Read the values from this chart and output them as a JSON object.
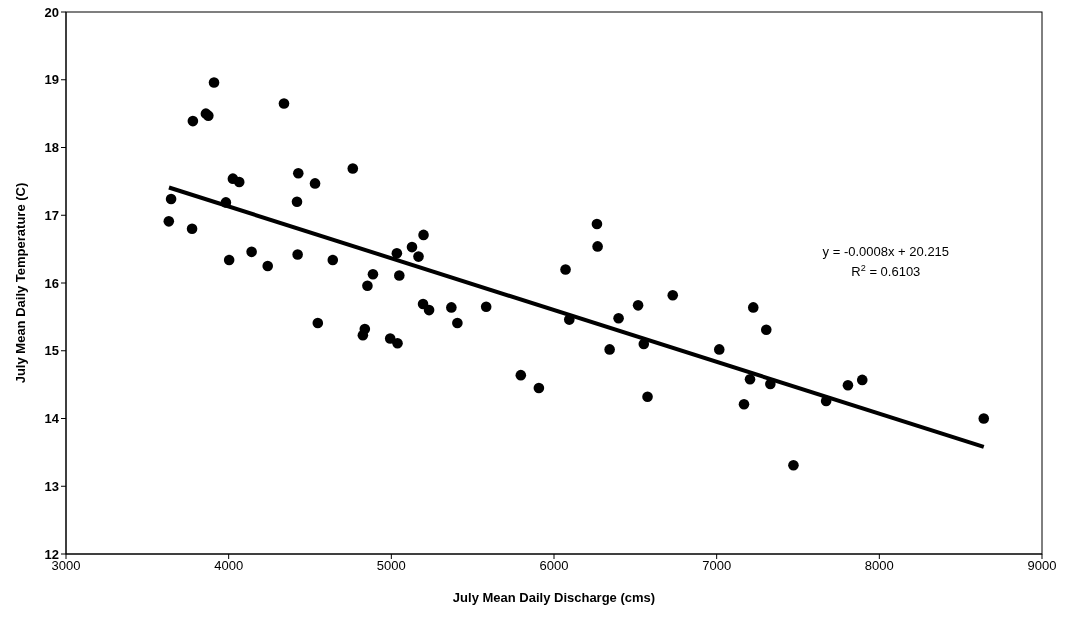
{
  "chart_data": {
    "type": "scatter",
    "xlabel": "July Mean Daily Discharge (cms)",
    "ylabel": "July Mean Daily Temperature (C)",
    "xlim": [
      3000,
      9000
    ],
    "xticks": [
      3000,
      4000,
      5000,
      6000,
      7000,
      8000,
      9000
    ],
    "ylim": [
      12,
      20
    ],
    "yticks": [
      12,
      13,
      14,
      15,
      16,
      17,
      18,
      19,
      20
    ],
    "grid": false,
    "legend": false,
    "annotations": [
      "y = -0.0008x + 20.215",
      "R$^{2}$ = 0.6103"
    ],
    "series": [
      {
        "marker": "circle",
        "color": "#000000",
        "x": [
          3646,
          3632,
          3775,
          4026,
          4065,
          3983,
          4003,
          4141,
          4240,
          4428,
          4531,
          4420,
          4424,
          4763,
          4640,
          4887,
          4853,
          5049,
          5034,
          5127,
          5167,
          5198,
          4548,
          4837,
          4825,
          4993,
          5038,
          5195,
          5232,
          5369,
          5406,
          3780,
          3860,
          3875,
          3910,
          4340,
          5583,
          5796,
          5907,
          6071,
          6094,
          6264,
          6268,
          6342,
          6397,
          6517,
          6552,
          6575,
          6730,
          7016,
          7225,
          7305,
          7205,
          7330,
          7168,
          7472,
          7673,
          7807,
          7895,
          8642
        ],
        "values": [
          17.24,
          16.91,
          16.8,
          17.54,
          17.49,
          17.19,
          16.34,
          16.46,
          16.25,
          17.62,
          17.47,
          17.2,
          16.42,
          17.69,
          16.34,
          16.13,
          15.96,
          16.11,
          16.44,
          16.53,
          16.39,
          16.71,
          15.41,
          15.32,
          15.23,
          15.18,
          15.11,
          15.69,
          15.6,
          15.64,
          15.41,
          18.39,
          18.5,
          18.47,
          18.96,
          18.65,
          15.65,
          14.64,
          14.45,
          16.2,
          15.46,
          16.87,
          16.54,
          15.02,
          15.48,
          15.67,
          15.1,
          14.32,
          15.82,
          15.02,
          15.64,
          15.31,
          14.58,
          14.51,
          14.21,
          13.31,
          14.26,
          14.49,
          14.57,
          14
        ]
      },
      {
        "type": "line",
        "marker": "none",
        "color": "#000000",
        "x": [
          3633,
          8642
        ],
        "values": [
          17.41,
          13.58
        ]
      }
    ]
  }
}
